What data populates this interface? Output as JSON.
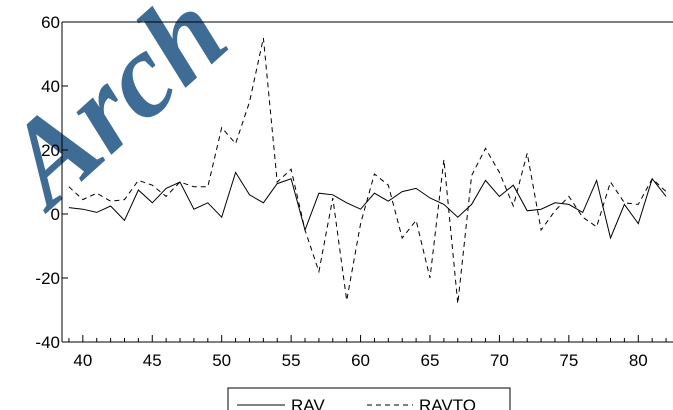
{
  "watermark": {
    "text": "Arch",
    "color": "#2a5d8a"
  },
  "chart_data": {
    "type": "line",
    "title": "",
    "xlabel": "",
    "ylabel": "",
    "xlim": [
      38.5,
      82.5
    ],
    "ylim": [
      -40,
      60
    ],
    "grid": false,
    "legend_position": "bottom",
    "x_ticks": [
      40,
      45,
      50,
      55,
      60,
      65,
      70,
      75,
      80
    ],
    "y_ticks": [
      -40,
      -20,
      0,
      20,
      40,
      60
    ],
    "x_tick_labels": [
      "40",
      "45",
      "50",
      "55",
      "60",
      "65",
      "70",
      "75",
      "80"
    ],
    "y_tick_labels": [
      "-40",
      "-20",
      "0",
      "20",
      "40",
      "60"
    ],
    "x": [
      39,
      40,
      41,
      42,
      43,
      44,
      45,
      46,
      47,
      48,
      49,
      50,
      51,
      52,
      53,
      54,
      55,
      56,
      57,
      58,
      59,
      60,
      61,
      62,
      63,
      64,
      65,
      66,
      67,
      68,
      69,
      70,
      71,
      72,
      73,
      74,
      75,
      76,
      77,
      78,
      79,
      80,
      81,
      82
    ],
    "series": [
      {
        "name": "RAV",
        "line_style": "solid",
        "color": "#000000",
        "values": [
          2,
          1.5,
          0.5,
          2.5,
          -2,
          7.5,
          3.5,
          8,
          10,
          1.5,
          3.5,
          -1,
          13,
          6,
          3.5,
          9.5,
          11,
          -5,
          6.5,
          6,
          3.5,
          1.5,
          6.5,
          4,
          7,
          8,
          5,
          3,
          -1,
          3,
          10.5,
          5.5,
          9,
          1,
          1.5,
          3.5,
          3,
          0.5,
          10.5,
          -7.5,
          3,
          -3,
          11,
          5.5
        ]
      },
      {
        "name": "RAVTO",
        "line_style": "dashed",
        "color": "#000000",
        "values": [
          8.5,
          4.5,
          6.5,
          4,
          4.5,
          10.5,
          9,
          5.5,
          10,
          8.5,
          8.5,
          27,
          22,
          35,
          55,
          10,
          14,
          -5,
          -18,
          5,
          -27,
          -3,
          12.5,
          9,
          -7.5,
          -2,
          -20,
          17,
          -28,
          12,
          20.5,
          13,
          2.5,
          19,
          -5,
          1,
          5.5,
          -1,
          -4,
          10,
          3.5,
          3,
          11,
          7
        ]
      }
    ]
  }
}
